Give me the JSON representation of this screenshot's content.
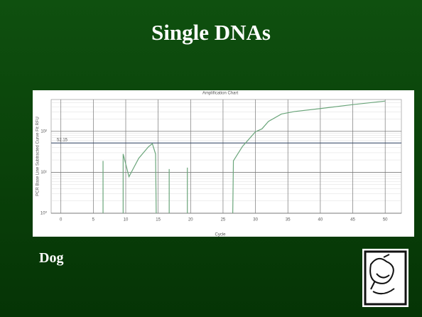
{
  "slide": {
    "title": "Single DNAs",
    "caption": "Dog"
  },
  "chart_data": {
    "type": "line",
    "title": "Amplification Chart",
    "x_label": "Cycle",
    "y_label": "PCR Base Line Subtracted Curve Fit RFU",
    "log_y": true,
    "grid": true,
    "xlim": [
      -1.5,
      52.5
    ],
    "xticks": [
      0,
      5,
      10,
      15,
      20,
      25,
      30,
      35,
      40,
      45,
      50
    ],
    "ylim": [
      1,
      600
    ],
    "yticks": [
      {
        "value": 1,
        "label": "10⁰"
      },
      {
        "value": 10,
        "label": "10¹"
      },
      {
        "value": 100,
        "label": "10²"
      }
    ],
    "threshold": 52.15,
    "series": [
      {
        "color": "#6aa57a",
        "x": [
          6.5,
          6.5
        ],
        "values": [
          1,
          19
        ]
      },
      {
        "color": "#6aa57a",
        "x": [
          9.6,
          9.6,
          10.5,
          12,
          13.5,
          14.1,
          14.6,
          14.7
        ],
        "values": [
          1,
          28,
          7.8,
          22,
          42,
          50,
          28,
          1
        ]
      },
      {
        "color": "#6aa57a",
        "x": [
          16.7,
          16.7
        ],
        "values": [
          1,
          12
        ]
      },
      {
        "color": "#6aa57a",
        "x": [
          19.5,
          19.5
        ],
        "values": [
          1,
          13
        ]
      },
      {
        "color": "#6aa57a",
        "x": [
          26.5,
          26.6,
          28,
          30,
          31,
          32,
          34,
          36,
          40,
          45,
          50
        ],
        "values": [
          1,
          19,
          43,
          98,
          115,
          175,
          265,
          305,
          360,
          450,
          550
        ]
      }
    ]
  }
}
